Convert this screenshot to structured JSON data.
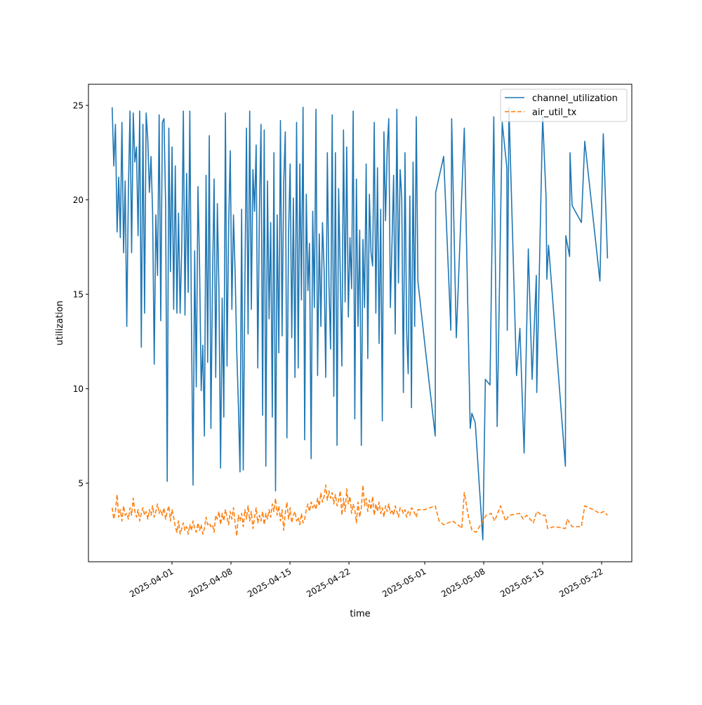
{
  "chart_data": {
    "type": "line",
    "title": "",
    "xlabel": "time",
    "ylabel": "utilization",
    "x_unit": "days since 2025-04-01",
    "xlim": [
      -9.92,
      54.58
    ],
    "ylim": [
      0.84,
      26.12
    ],
    "grid": false,
    "legend_placement": "top-right",
    "x_ticks": [
      {
        "value": 0,
        "label": "2025-04-01"
      },
      {
        "value": 7,
        "label": "2025-04-08"
      },
      {
        "value": 14,
        "label": "2025-04-15"
      },
      {
        "value": 21,
        "label": "2025-04-22"
      },
      {
        "value": 30,
        "label": "2025-05-01"
      },
      {
        "value": 37,
        "label": "2025-05-08"
      },
      {
        "value": 44,
        "label": "2025-05-15"
      },
      {
        "value": 51,
        "label": "2025-05-22"
      }
    ],
    "y_ticks": [
      {
        "value": 5,
        "label": "5"
      },
      {
        "value": 10,
        "label": "10"
      },
      {
        "value": 15,
        "label": "15"
      },
      {
        "value": 20,
        "label": "20"
      },
      {
        "value": 25,
        "label": "25"
      }
    ],
    "series": [
      {
        "name": "channel_utilization",
        "color": "#1f77b4",
        "style": "solid",
        "dense_x_start": -7.1,
        "dense_x_step": 0.192,
        "dense_values": [
          24.9,
          21.8,
          24.0,
          18.3,
          21.2,
          18.0,
          24.1,
          17.2,
          21.0,
          13.3,
          20.5,
          24.7,
          17.2,
          24.6,
          22.0,
          22.8,
          18.1,
          24.7,
          12.2,
          24.0,
          14.0,
          24.6,
          23.2,
          20.4,
          22.3,
          19.3,
          11.3,
          19.2,
          16.0,
          24.5,
          13.6,
          24.1,
          24.3,
          19.8,
          5.1,
          23.8,
          16.2,
          22.8,
          14.2,
          21.8,
          14.0,
          19.3,
          14.0,
          17.5,
          24.7,
          13.9,
          21.4,
          15.1,
          24.7,
          13.5,
          4.9,
          17.3,
          10.1,
          20.7,
          16.5,
          9.9,
          12.3,
          7.5,
          21.3,
          11.4,
          23.4,
          7.9,
          15.6,
          21.1,
          10.6,
          19.8,
          15.2,
          5.8,
          14.8,
          8.5,
          24.6,
          11.2,
          18.6,
          22.6,
          14.2,
          19.2,
          16.2,
          12.1,
          9.1,
          5.6,
          19.5,
          5.7,
          15.4,
          23.8,
          12.9,
          24.7,
          14.2,
          21.6,
          19.4,
          22.9,
          11.1,
          19.3,
          24.0,
          8.6,
          23.7,
          5.9,
          21.0,
          13.7,
          18.8,
          8.5,
          22.5,
          4.6,
          19.2,
          11.9,
          24.2,
          12.8,
          20.8,
          23.6,
          7.4,
          18.1,
          21.9,
          12.7,
          20.1,
          10.6,
          24.1,
          11.1,
          21.9,
          14.7,
          24.9,
          7.3,
          20.3,
          15.2,
          17.7,
          6.3,
          19.4,
          14.3,
          24.8,
          10.7,
          18.2,
          13.3,
          18.8,
          16.3,
          10.6,
          22.5,
          15.5,
          12.1,
          24.5,
          9.6,
          22.5,
          7.0,
          20.6,
          16.1,
          11.2,
          23.7,
          14.6,
          22.8,
          13.8,
          18.0,
          15.3,
          24.7,
          8.4,
          21.1,
          13.3,
          18.4,
          7.0,
          17.9,
          14.3,
          21.9,
          11.6,
          20.3,
          17.2,
          16.5,
          24.1,
          14.0,
          21.7,
          12.4,
          19.5,
          8.3,
          23.6,
          18.9,
          22.6,
          24.3,
          14.3,
          17.7,
          21.3,
          12.9,
          24.8,
          15.6,
          21.6,
          20.1,
          9.8,
          22.5,
          13.1,
          10.8,
          20.2,
          9.0,
          22.0,
          13.3,
          24.4,
          15.7
        ],
        "tail_x": [
          30.1,
          31.25,
          31.3,
          32.25,
          33.1,
          33.2,
          33.75,
          34.7,
          35.4,
          35.6,
          36.0,
          36.9,
          37.2,
          37.75,
          38.2,
          38.6,
          39.2,
          39.75,
          39.8,
          40.0,
          40.9,
          41.3,
          41.8,
          42.3,
          42.75,
          43.25,
          43.3,
          44.0,
          44.4,
          44.5,
          44.7,
          46.7,
          46.75,
          47.2,
          47.25,
          47.5,
          48.6,
          49.0,
          50.8,
          51.2,
          51.7
        ],
        "tail_values": [
          12.0,
          7.5,
          20.4,
          22.3,
          13.1,
          24.3,
          12.7,
          23.8,
          7.9,
          8.7,
          8.2,
          2.0,
          10.5,
          10.2,
          24.4,
          8.0,
          24.1,
          21.7,
          13.1,
          24.9,
          10.7,
          13.2,
          6.6,
          17.4,
          10.5,
          16.0,
          9.8,
          24.4,
          20.2,
          15.8,
          17.6,
          5.9,
          18.1,
          17.0,
          22.5,
          19.7,
          18.8,
          23.1,
          15.7,
          23.5,
          16.9
        ]
      },
      {
        "name": "air_util_tx",
        "color": "#ff7f0e",
        "style": "dashed",
        "dense_x_start": -7.1,
        "dense_x_step": 0.192,
        "dense_values": [
          3.7,
          3.1,
          3.5,
          4.4,
          3.2,
          3.6,
          3.0,
          3.8,
          3.3,
          3.4,
          3.1,
          3.7,
          3.3,
          4.2,
          3.5,
          3.2,
          3.6,
          3.0,
          3.4,
          3.7,
          3.3,
          3.5,
          3.1,
          3.6,
          3.3,
          3.8,
          3.2,
          3.5,
          3.9,
          3.4,
          3.6,
          3.3,
          3.7,
          3.1,
          3.5,
          3.8,
          3.0,
          3.6,
          3.2,
          2.7,
          2.4,
          3.0,
          2.3,
          2.6,
          2.9,
          2.5,
          2.7,
          2.3,
          2.8,
          2.5,
          3.0,
          2.6,
          2.4,
          2.9,
          2.5,
          2.8,
          2.3,
          2.6,
          3.2,
          2.8,
          2.9,
          2.7,
          2.8,
          2.4,
          3.3,
          3.1,
          3.5,
          2.8,
          3.4,
          3.0,
          3.6,
          3.2,
          2.8,
          3.5,
          3.1,
          3.7,
          2.9,
          2.2,
          3.3,
          3.0,
          3.4,
          2.7,
          3.6,
          3.1,
          3.8,
          3.0,
          3.5,
          2.6,
          3.2,
          3.7,
          2.9,
          3.3,
          3.0,
          3.5,
          2.8,
          3.4,
          3.1,
          3.6,
          3.2,
          3.9,
          3.5,
          4.2,
          3.3,
          3.8,
          3.0,
          3.6,
          2.5,
          3.4,
          4.0,
          3.1,
          3.7,
          2.9,
          3.3,
          3.5,
          3.0,
          3.2,
          2.8,
          3.4,
          2.9,
          3.1,
          3.6,
          3.9,
          3.5,
          4.0,
          3.7,
          3.9,
          3.6,
          4.2,
          3.8,
          4.5,
          4.0,
          4.3,
          4.9,
          4.1,
          4.6,
          4.2,
          4.5,
          3.9,
          4.4,
          3.8,
          4.1,
          4.6,
          3.3,
          4.2,
          3.5,
          4.7,
          3.9,
          4.3,
          3.4,
          3.9,
          3.6,
          2.9,
          4.0,
          3.2,
          3.7,
          4.9,
          3.8,
          4.2,
          3.5,
          4.1,
          3.6,
          4.3,
          3.3,
          3.9,
          3.5,
          4.0,
          3.4,
          3.7,
          3.2,
          3.8,
          3.5,
          3.9,
          3.4,
          3.6,
          3.3,
          3.8,
          3.5,
          3.2,
          3.7,
          3.6,
          3.4,
          3.6,
          3.2,
          3.5,
          3.3,
          3.7,
          3.6,
          3.4,
          3.2,
          3.6
        ],
        "tail_x": [
          30.0,
          31.25,
          31.7,
          32.25,
          33.3,
          34.2,
          34.4,
          34.7,
          35.2,
          35.6,
          36.1,
          36.9,
          37.3,
          37.9,
          38.3,
          39.0,
          39.6,
          40.0,
          41.25,
          41.7,
          42.1,
          42.5,
          42.9,
          43.3,
          43.9,
          44.3,
          44.6,
          45.4,
          46.7,
          46.9,
          47.5,
          48.6,
          49.0,
          50.0,
          50.8,
          51.25,
          51.7
        ],
        "tail_values": [
          3.6,
          3.8,
          3.0,
          2.8,
          3.0,
          2.7,
          2.6,
          4.5,
          3.2,
          2.5,
          2.4,
          3.0,
          3.3,
          3.4,
          3.0,
          3.8,
          3.0,
          3.3,
          3.4,
          3.1,
          3.3,
          3.1,
          2.9,
          3.5,
          3.3,
          3.3,
          2.6,
          2.7,
          2.6,
          3.1,
          2.7,
          2.7,
          3.8,
          3.6,
          3.4,
          3.5,
          3.3
        ]
      }
    ]
  }
}
